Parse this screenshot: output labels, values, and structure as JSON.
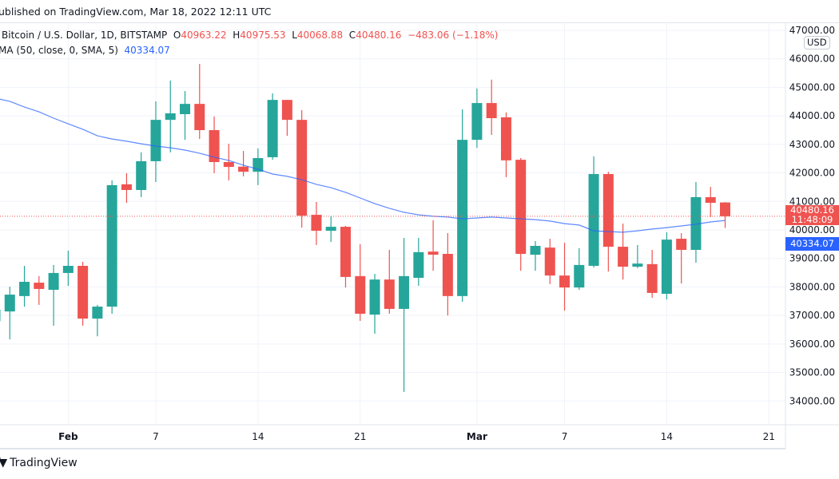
{
  "header": {
    "published": "ublished on TradingView.com, Mar 18, 2022 12:11 UTC"
  },
  "legend": {
    "symbol": "Bitcoin / U.S. Dollar, 1D, BITSTAMP",
    "o_label": "O",
    "o": "40963.22",
    "h_label": "H",
    "h": "40975.53",
    "l_label": "L",
    "l": "40068.88",
    "c_label": "C",
    "c": "40480.16",
    "change": "−483.06 (−1.18%)",
    "ma_label": "MA (50, close, 0, SMA, 5)",
    "ma_value": "40334.07"
  },
  "price_axis": {
    "currency": "USD",
    "last_price": "40480.16",
    "countdown": "11:48:09",
    "ma_price": "40334.07"
  },
  "footer": {
    "logo_text": "TradingView"
  },
  "colors": {
    "up": "#26a69a",
    "down": "#ef5350",
    "ma": "#2962ff",
    "grid": "#f0f3fa",
    "text": "#131722"
  },
  "chart_data": {
    "type": "candlestick",
    "title": "Bitcoin / U.S. Dollar, 1D, BITSTAMP",
    "ylim": [
      33400,
      47200
    ],
    "y_ticks": [
      "34000.00",
      "35000.00",
      "36000.00",
      "37000.00",
      "38000.00",
      "39000.00",
      "40000.00",
      "41000.00",
      "42000.00",
      "43000.00",
      "44000.00",
      "45000.00",
      "46000.00",
      "47000.00"
    ],
    "x_ticks": [
      {
        "date": "2022-02-01",
        "label": "Feb",
        "bold": true
      },
      {
        "date": "2022-02-07",
        "label": "7"
      },
      {
        "date": "2022-02-14",
        "label": "14"
      },
      {
        "date": "2022-02-21",
        "label": "21"
      },
      {
        "date": "2022-03-01",
        "label": "Mar",
        "bold": true
      },
      {
        "date": "2022-03-07",
        "label": "7"
      },
      {
        "date": "2022-03-14",
        "label": "14"
      },
      {
        "date": "2022-03-21",
        "label": "21"
      }
    ],
    "grid": true,
    "columns": [
      "date",
      "open",
      "high",
      "low",
      "close",
      "sma50"
    ],
    "candles": [
      [
        "2022-01-27",
        36800,
        37300,
        36300,
        37200,
        44620
      ],
      [
        "2022-01-28",
        37140,
        38010,
        36160,
        37730,
        44510
      ],
      [
        "2022-01-29",
        37680,
        38740,
        37310,
        38180,
        44310
      ],
      [
        "2022-01-30",
        38150,
        38380,
        37370,
        37930,
        44140
      ],
      [
        "2022-01-31",
        37900,
        38770,
        36640,
        38490,
        43920
      ],
      [
        "2022-02-01",
        38490,
        39270,
        38040,
        38740,
        43720
      ],
      [
        "2022-02-02",
        38740,
        38880,
        36640,
        36890,
        43530
      ],
      [
        "2022-02-03",
        36890,
        37370,
        36270,
        37310,
        43300
      ],
      [
        "2022-02-04",
        37310,
        41740,
        37060,
        41570,
        43190
      ],
      [
        "2022-02-05",
        41600,
        41990,
        40950,
        41400,
        43110
      ],
      [
        "2022-02-06",
        41400,
        42720,
        41150,
        42410,
        43020
      ],
      [
        "2022-02-07",
        42410,
        44510,
        41680,
        43860,
        42940
      ],
      [
        "2022-02-08",
        43860,
        45240,
        42720,
        44090,
        42880
      ],
      [
        "2022-02-09",
        44060,
        44870,
        43160,
        44420,
        42800
      ],
      [
        "2022-02-10",
        44420,
        45820,
        43190,
        43500,
        42690
      ],
      [
        "2022-02-11",
        43500,
        43980,
        41990,
        42380,
        42550
      ],
      [
        "2022-02-12",
        42380,
        43020,
        41740,
        42210,
        42440
      ],
      [
        "2022-02-13",
        42220,
        42770,
        41880,
        42040,
        42270
      ],
      [
        "2022-02-14",
        42040,
        42860,
        41570,
        42520,
        42130
      ],
      [
        "2022-02-15",
        42550,
        44790,
        42460,
        44560,
        41960
      ],
      [
        "2022-02-16",
        44560,
        44560,
        43300,
        43860,
        41880
      ],
      [
        "2022-02-17",
        43860,
        44200,
        40080,
        40500,
        41760
      ],
      [
        "2022-02-18",
        40530,
        40980,
        39470,
        39970,
        41600
      ],
      [
        "2022-02-19",
        39970,
        40480,
        39580,
        40110,
        41480
      ],
      [
        "2022-02-20",
        40110,
        40140,
        37980,
        38350,
        41320
      ],
      [
        "2022-02-21",
        38380,
        39500,
        36810,
        37060,
        41120
      ],
      [
        "2022-02-22",
        37030,
        38460,
        36360,
        38260,
        40920
      ],
      [
        "2022-02-23",
        38260,
        39300,
        37060,
        37230,
        40760
      ],
      [
        "2022-02-24",
        37230,
        39720,
        34320,
        38380,
        40620
      ],
      [
        "2022-02-25",
        38320,
        39720,
        38040,
        39220,
        40530
      ],
      [
        "2022-02-26",
        39240,
        40340,
        38570,
        39130,
        40480
      ],
      [
        "2022-02-27",
        39160,
        39890,
        37000,
        37680,
        40450
      ],
      [
        "2022-02-28",
        37680,
        44230,
        37480,
        43160,
        40390
      ],
      [
        "2022-03-01",
        43160,
        44960,
        42880,
        44450,
        40420
      ],
      [
        "2022-03-02",
        44450,
        45270,
        43330,
        43920,
        40450
      ],
      [
        "2022-03-03",
        43950,
        44120,
        41850,
        42440,
        40420
      ],
      [
        "2022-03-04",
        42460,
        42520,
        38570,
        39160,
        40390
      ],
      [
        "2022-03-05",
        39130,
        39610,
        38570,
        39440,
        40360
      ],
      [
        "2022-03-06",
        39380,
        39690,
        38100,
        38400,
        40310
      ],
      [
        "2022-03-07",
        38400,
        39550,
        37170,
        37980,
        40220
      ],
      [
        "2022-03-08",
        37980,
        39360,
        37900,
        38770,
        40170
      ],
      [
        "2022-03-09",
        38740,
        42580,
        38680,
        41960,
        39970
      ],
      [
        "2022-03-10",
        41960,
        42040,
        38540,
        39410,
        39940
      ],
      [
        "2022-03-11",
        39410,
        40220,
        38260,
        38710,
        39920
      ],
      [
        "2022-03-12",
        38710,
        39470,
        38660,
        38820,
        39970
      ],
      [
        "2022-03-13",
        38800,
        39300,
        37620,
        37790,
        40030
      ],
      [
        "2022-03-14",
        37760,
        39920,
        37560,
        39660,
        40080
      ],
      [
        "2022-03-15",
        39690,
        39890,
        38120,
        39300,
        40140
      ],
      [
        "2022-03-16",
        39300,
        41680,
        38850,
        41150,
        40200
      ],
      [
        "2022-03-17",
        41150,
        41510,
        40450,
        40950,
        40280
      ],
      [
        "2022-03-18",
        40963.22,
        40975.53,
        40068.88,
        40480.16,
        40334.07
      ]
    ]
  }
}
